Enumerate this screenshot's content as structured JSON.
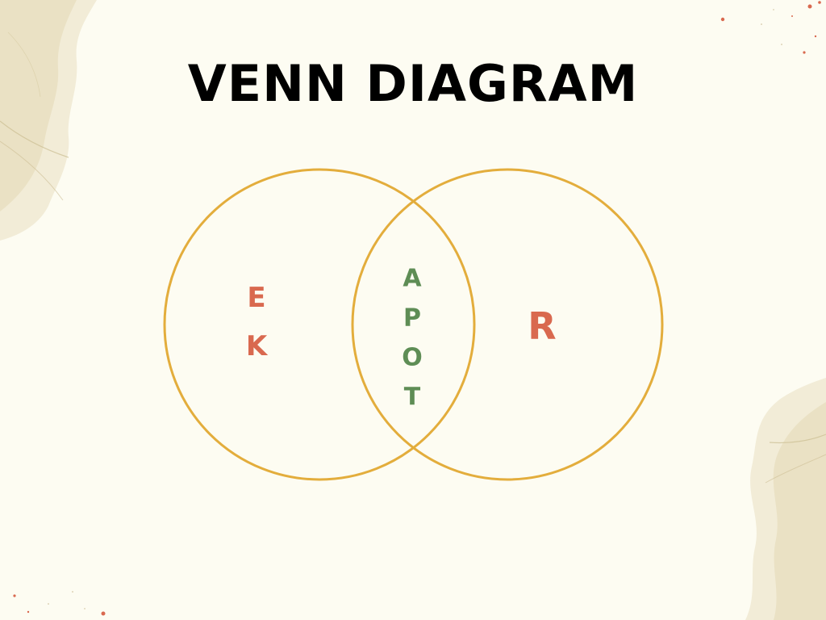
{
  "title": "VENN DIAGRAM",
  "colors": {
    "background": "#fdfcf2",
    "circle_stroke": "#e3ad3c",
    "set_text": "#d9694f",
    "intersection_text": "#5e8d55",
    "title": "#000000"
  },
  "venn": {
    "left_set_letters": [
      "E",
      "K"
    ],
    "intersection_letters": [
      "A",
      "P",
      "O",
      "T"
    ],
    "right_set_letters": [
      "R"
    ]
  }
}
